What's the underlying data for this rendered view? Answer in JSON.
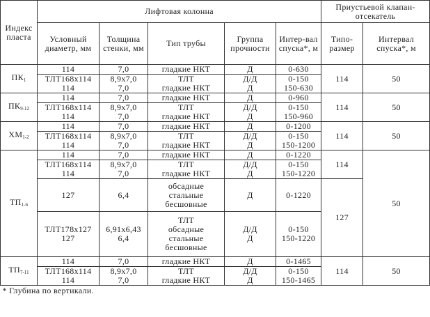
{
  "header": {
    "index": "Индекс пласта",
    "lift_column": "Лифтовая колонна",
    "valve": "Приустьевой клапан-отсекатель",
    "diameter": "Условный диаметр, мм",
    "wall": "Толщина стенки, мм",
    "pipe_type": "Тип трубы",
    "strength": "Группа прочности",
    "interval": "Интер-вал спуска*, м",
    "size": "Типо-размер",
    "valve_interval": "Интервал спуска*, м"
  },
  "layers": [
    {
      "index": "ПК",
      "sub": "1",
      "size": "114",
      "valve_interval": "50",
      "rows": [
        {
          "d": [
            "114"
          ],
          "w": [
            "7,0"
          ],
          "t": [
            "гладкие НКТ"
          ],
          "g": [
            "Д"
          ],
          "i": [
            "0-630"
          ]
        },
        {
          "d": [
            "ТЛТ168х114",
            "114"
          ],
          "w": [
            "8,9х7,0",
            "7,0"
          ],
          "t": [
            "ТЛТ",
            "гладкие НКТ"
          ],
          "g": [
            "Д/Д",
            "Д"
          ],
          "i": [
            "0-150",
            "150-630"
          ]
        }
      ]
    },
    {
      "index": "ПК",
      "sub": "9-12",
      "size": "114",
      "valve_interval": "50",
      "rows": [
        {
          "d": [
            "114"
          ],
          "w": [
            "7,0"
          ],
          "t": [
            "гладкие НКТ"
          ],
          "g": [
            "Д"
          ],
          "i": [
            "0-960"
          ]
        },
        {
          "d": [
            "ТЛТ168х114",
            "114"
          ],
          "w": [
            "8,9х7,0",
            "7,0"
          ],
          "t": [
            "ТЛТ",
            "гладкие НКТ"
          ],
          "g": [
            "Д/Д",
            "Д"
          ],
          "i": [
            "0-150",
            "150-960"
          ]
        }
      ]
    },
    {
      "index": "ХМ",
      "sub": "1-2",
      "size": "114",
      "valve_interval": "50",
      "rows": [
        {
          "d": [
            "114"
          ],
          "w": [
            "7,0"
          ],
          "t": [
            "гладкие НКТ"
          ],
          "g": [
            "Д"
          ],
          "i": [
            "0-1200"
          ]
        },
        {
          "d": [
            "ТЛТ168х114",
            "114"
          ],
          "w": [
            "8,9х7,0",
            "7,0"
          ],
          "t": [
            "ТЛТ",
            "гладкие НКТ"
          ],
          "g": [
            "Д/Д",
            "Д"
          ],
          "i": [
            "0-150",
            "150-1200"
          ]
        }
      ]
    },
    {
      "index": "ТП",
      "sub": "1-6",
      "size_a": "114",
      "size_b": "127",
      "valve_interval": "50",
      "rows": [
        {
          "d": [
            "114"
          ],
          "w": [
            "7,0"
          ],
          "t": [
            "гладкие НКТ"
          ],
          "g": [
            "Д"
          ],
          "i": [
            "0-1220"
          ]
        },
        {
          "d": [
            "ТЛТ168х114",
            "114"
          ],
          "w": [
            "8,9х7,0",
            "7,0"
          ],
          "t": [
            "ТЛТ",
            "гладкие НКТ"
          ],
          "g": [
            "Д/Д",
            "Д"
          ],
          "i": [
            "0-150",
            "150-1220"
          ]
        },
        {
          "d": [
            "127"
          ],
          "w": [
            "6,4"
          ],
          "t": [
            "обсадные",
            "стальные",
            "бесшовные"
          ],
          "g": [
            "Д"
          ],
          "i": [
            "0-1220"
          ]
        },
        {
          "d": [
            "ТЛТ178х127",
            "127"
          ],
          "w": [
            "6,91х6,43",
            "6,4"
          ],
          "t": [
            "ТЛТ",
            "обсадные",
            "стальные",
            "бесшовные"
          ],
          "g": [
            "Д/Д",
            "Д"
          ],
          "i": [
            "0-150",
            "150-1220"
          ]
        }
      ]
    },
    {
      "index": "ТП",
      "sub": "7-11",
      "size": "114",
      "valve_interval": "50",
      "rows": [
        {
          "d": [
            "114"
          ],
          "w": [
            "7,0"
          ],
          "t": [
            "гладкие НКТ"
          ],
          "g": [
            "Д"
          ],
          "i": [
            "0-1465"
          ]
        },
        {
          "d": [
            "ТЛТ168х114",
            "114"
          ],
          "w": [
            "8,9х7,0",
            "7,0"
          ],
          "t": [
            "ТЛТ",
            "гладкие НКТ"
          ],
          "g": [
            "Д/Д",
            "Д"
          ],
          "i": [
            "0-150",
            "150-1465"
          ]
        }
      ]
    }
  ],
  "footnote": "* Глубина по вертикали."
}
